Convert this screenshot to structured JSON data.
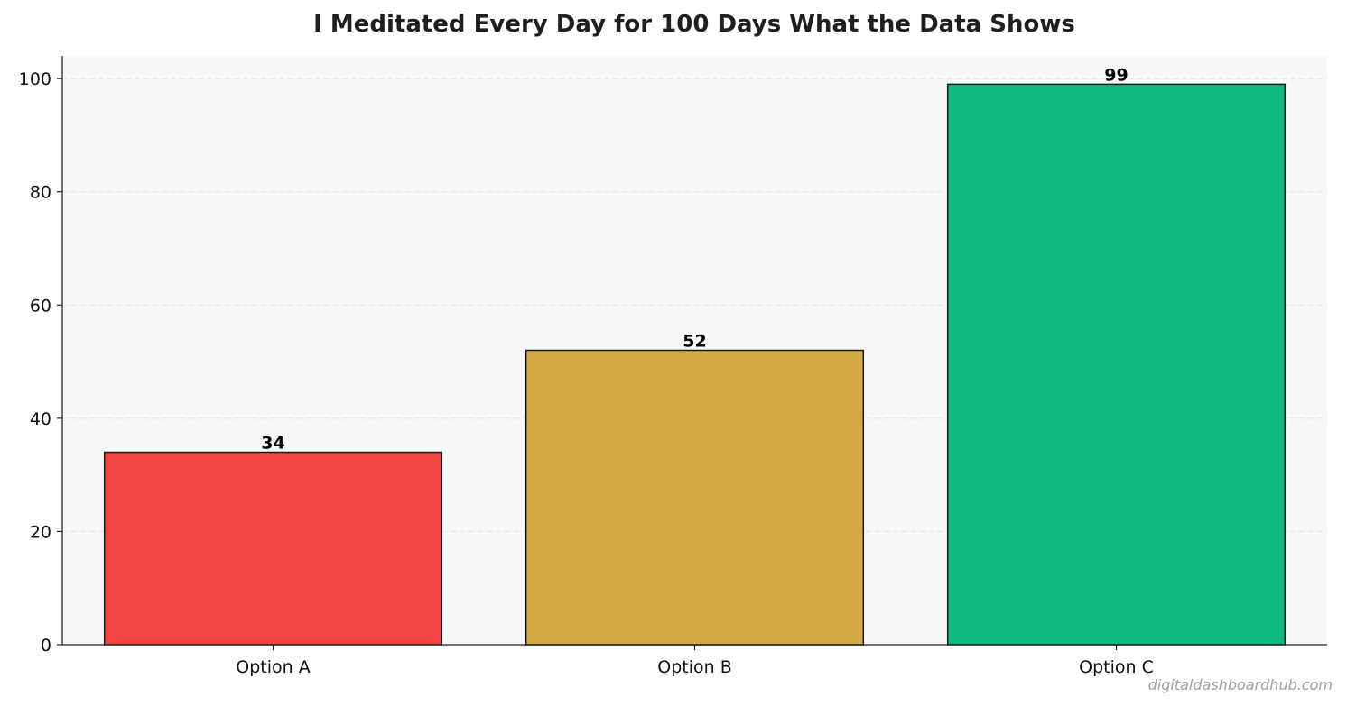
{
  "chart_data": {
    "type": "bar",
    "title": "I Meditated Every Day for 100 Days  What the Data Shows",
    "categories": [
      "Option A",
      "Option B",
      "Option C"
    ],
    "values": [
      34,
      52,
      99
    ],
    "data_labels": [
      "34",
      "52",
      "99"
    ],
    "colors": [
      "#ef4444",
      "#d4a843",
      "#10b981"
    ],
    "edge_color": "#1a1a1a",
    "background_color": "#f7f8fa",
    "xlabel": "",
    "ylabel": "",
    "ylim": [
      0,
      104
    ],
    "yticks": [
      0,
      20,
      40,
      60,
      80,
      100
    ],
    "grid": true,
    "legend": "none"
  },
  "watermark": "digitaldashboardhub.com"
}
